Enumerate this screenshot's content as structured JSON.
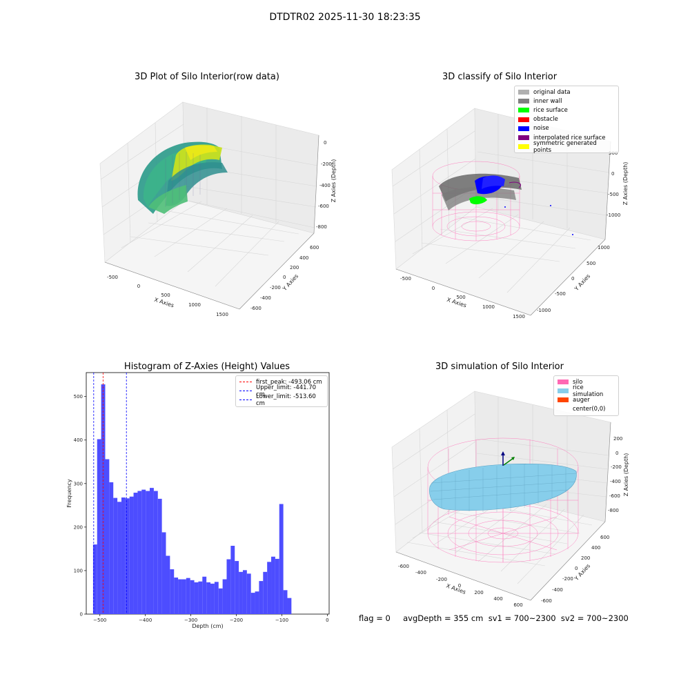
{
  "suptitle": "DTDTR02 2025-11-30 18:23:35",
  "status_text": "flag = 0     avgDepth = 355 cm  sv1 = 700~2300  sv2 = 700~2300",
  "colors": {
    "original": "#b0b0b0",
    "inner_wall": "#808080",
    "rice_surface": "#00ff00",
    "obstacle": "#ff0000",
    "noise": "#0000ff",
    "interpolated": "#800080",
    "symmetric": "#ffff00",
    "silo": "#ff69b4",
    "rice_sim": "#87ceeb",
    "auger": "#ff4500",
    "hist_bar": "#4d4dff"
  },
  "chart_data": [
    {
      "type": "scatter",
      "title": "3D Plot of Silo Interior(row data)",
      "xlabel": "X Axies",
      "ylabel": "Y Axies",
      "zlabel": "Z Axies (Depth)",
      "x_ticks": [
        "-500",
        "0",
        "500",
        "1000",
        "1500"
      ],
      "y_ticks": [
        "600",
        "400",
        "200",
        "0",
        "-200",
        "-400",
        "-600"
      ],
      "z_ticks": [
        "0",
        "-200",
        "-400",
        "-600",
        "-800"
      ],
      "colormap": "viridis"
    },
    {
      "type": "scatter",
      "title": "3D classify of Silo Interior",
      "xlabel": "X Axies",
      "ylabel": "Y Axies",
      "zlabel": "Z Axies (Depth)",
      "x_ticks": [
        "-500",
        "0",
        "500",
        "1000",
        "1500"
      ],
      "y_ticks": [
        "1000",
        "500",
        "0",
        "-500",
        "-1000"
      ],
      "z_ticks": [
        "500",
        "0",
        "-500",
        "-1000"
      ],
      "legend": [
        "original data",
        "inner wall",
        "rice surface",
        "obstacle",
        "noise",
        "interpolated rice surface",
        "symmetric generated points"
      ]
    },
    {
      "type": "bar",
      "title": "Histogram of Z-Axies (Height) Values",
      "xlabel": "Depth (cm)",
      "ylabel": "Frequency",
      "xlim": [
        -530,
        4
      ],
      "ylim": [
        0,
        555
      ],
      "x_ticks": [
        -500,
        -400,
        -300,
        -200,
        -100,
        0
      ],
      "y_ticks": [
        0,
        100,
        200,
        300,
        400,
        500
      ],
      "bin_start": -515,
      "bin_width": 8.9,
      "values": [
        160,
        402,
        528,
        356,
        303,
        267,
        258,
        268,
        266,
        270,
        279,
        283,
        286,
        283,
        290,
        283,
        265,
        188,
        134,
        103,
        84,
        80,
        80,
        83,
        78,
        73,
        75,
        86,
        73,
        70,
        74,
        59,
        80,
        126,
        157,
        122,
        97,
        101,
        93,
        49,
        52,
        76,
        97,
        120,
        132,
        127,
        253,
        55,
        37
      ],
      "vlines": [
        {
          "x": -493.06,
          "color": "#ff0000",
          "label": "first_peak: -493.06 cm"
        },
        {
          "x": -441.7,
          "color": "#0000ff",
          "label": "Upper_limit: -441.70 cm"
        },
        {
          "x": -513.6,
          "color": "#0000ff",
          "label": "Lower_limit: -513.60 cm"
        }
      ],
      "legend_position": "top-right"
    },
    {
      "type": "scatter",
      "title": "3D simulation of Silo Interior",
      "xlabel": "X Axies",
      "ylabel": "Y Axies",
      "zlabel": "Z Axies (Depth)",
      "x_ticks": [
        "-600",
        "-400",
        "-200",
        "0",
        "200",
        "400",
        "600"
      ],
      "y_ticks": [
        "600",
        "400",
        "200",
        "0",
        "-200",
        "-400",
        "-600"
      ],
      "z_ticks": [
        "200",
        "0",
        "-200",
        "-400",
        "-600",
        "-800"
      ],
      "legend": [
        "silo",
        "rice simulation",
        "auger",
        "center(0,0)"
      ]
    }
  ]
}
